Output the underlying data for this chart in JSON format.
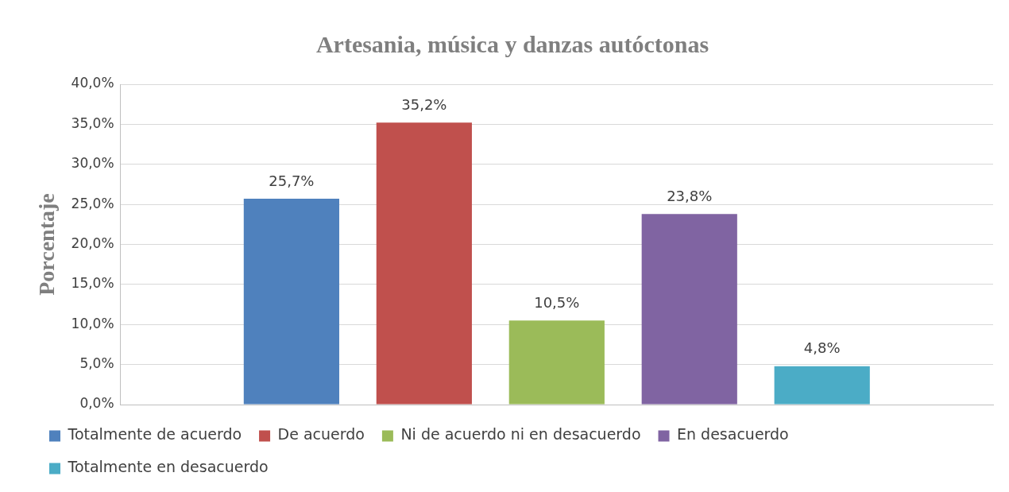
{
  "chart_data": {
    "type": "bar",
    "title": "Artesania, música y danzas autóctonas",
    "ylabel": "Porcentaje",
    "categories": [
      null
    ],
    "series": [
      {
        "name": "Totalmente de acuerdo",
        "color": "#4f81bd",
        "values": [
          25.7
        ],
        "value_labels": [
          "25,7%"
        ]
      },
      {
        "name": "De acuerdo",
        "color": "#c0504d",
        "values": [
          35.2
        ],
        "value_labels": [
          "35,2%"
        ]
      },
      {
        "name": "Ni de acuerdo ni en desacuerdo",
        "color": "#9bbb59",
        "values": [
          10.5
        ],
        "value_labels": [
          "10,5%"
        ]
      },
      {
        "name": "En desacuerdo",
        "color": "#8064a2",
        "values": [
          23.8
        ],
        "value_labels": [
          "23,8%"
        ]
      },
      {
        "name": "Totalmente en desacuerdo",
        "color": "#4bacc6",
        "values": [
          4.8
        ],
        "value_labels": [
          "4,8%"
        ]
      }
    ],
    "ylim": [
      0,
      40
    ],
    "yticks": [
      {
        "value": 0,
        "label": "0,0%"
      },
      {
        "value": 5,
        "label": "5,0%"
      },
      {
        "value": 10,
        "label": "10,0%"
      },
      {
        "value": 15,
        "label": "15,0%"
      },
      {
        "value": 20,
        "label": "20,0%"
      },
      {
        "value": 25,
        "label": "25,0%"
      },
      {
        "value": 30,
        "label": "30,0%"
      },
      {
        "value": 35,
        "label": "35,0%"
      },
      {
        "value": 40,
        "label": "40,0%"
      }
    ],
    "grid": "y",
    "legend": "bottom",
    "tick_labels": "y"
  }
}
